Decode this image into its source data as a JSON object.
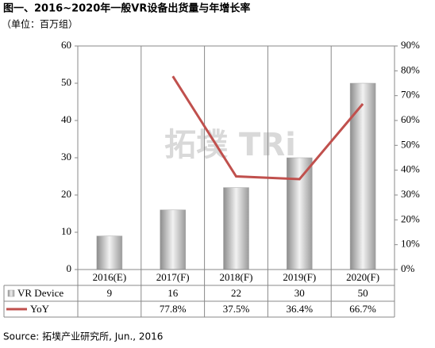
{
  "chart_data": {
    "type": "bar-line",
    "title": "图一、2016~2020年一般VR设备出货量与年增长率",
    "subtitle": "（单位：百万组）",
    "watermark": "拓墣 TRi",
    "source": "Source: 拓墣产业研究所, Jun., 2016",
    "categories": [
      "2016(E)",
      "2017(F)",
      "2018(F)",
      "2019(F)",
      "2020(F)"
    ],
    "series": [
      {
        "name": "VR Device",
        "color": "#a6a6a6",
        "values": [
          9,
          16,
          22,
          30,
          50
        ]
      },
      {
        "name": "YoY",
        "color": "#c0504d",
        "axis": "y2",
        "values": [
          null,
          77.8,
          37.5,
          36.4,
          66.7
        ],
        "value_labels": [
          null,
          "77.8%",
          "37.5%",
          "36.4%",
          "66.7%"
        ]
      }
    ],
    "ylim": [
      0,
      60
    ],
    "yticks": [
      0,
      10,
      20,
      30,
      40,
      50,
      60
    ],
    "y2lim": [
      0,
      90
    ],
    "y2ticks": [
      {
        "value": 0,
        "label": "0%"
      },
      {
        "value": 10,
        "label": "10%"
      },
      {
        "value": 20,
        "label": "20%"
      },
      {
        "value": 30,
        "label": "30%"
      },
      {
        "value": 40,
        "label": "40%"
      },
      {
        "value": 50,
        "label": "50%"
      },
      {
        "value": 60,
        "label": "60%"
      },
      {
        "value": 70,
        "label": "70%"
      },
      {
        "value": 80,
        "label": "80%"
      },
      {
        "value": 90,
        "label": "90%"
      }
    ]
  }
}
